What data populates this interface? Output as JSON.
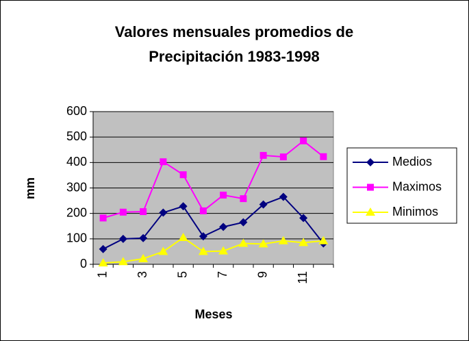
{
  "chart_data": {
    "type": "line",
    "title": [
      "Valores mensuales promedios de",
      "Precipitación  1983-1998"
    ],
    "x_label": "Meses",
    "y_label": "mm",
    "categories": [
      1,
      null,
      3,
      null,
      5,
      null,
      7,
      null,
      9,
      null,
      11,
      null
    ],
    "series": [
      {
        "name": "Medios",
        "color": "#000080",
        "marker": "diamond",
        "values": [
          60,
          100,
          103,
          203,
          228,
          110,
          147,
          165,
          235,
          265,
          182,
          82
        ]
      },
      {
        "name": "Maximos",
        "color": "#ff00ff",
        "marker": "square",
        "values": [
          182,
          205,
          207,
          403,
          352,
          210,
          272,
          258,
          428,
          422,
          485,
          423
        ]
      },
      {
        "name": "Minimos",
        "color": "#ffff00",
        "marker": "triangle",
        "values": [
          5,
          10,
          22,
          50,
          105,
          50,
          52,
          82,
          80,
          92,
          85,
          92
        ]
      }
    ],
    "ylim": [
      0,
      600
    ],
    "yticks": [
      0,
      100,
      200,
      300,
      400,
      500,
      600
    ],
    "grid": true,
    "legend": "right",
    "plot_background": "#c0c0c0"
  }
}
